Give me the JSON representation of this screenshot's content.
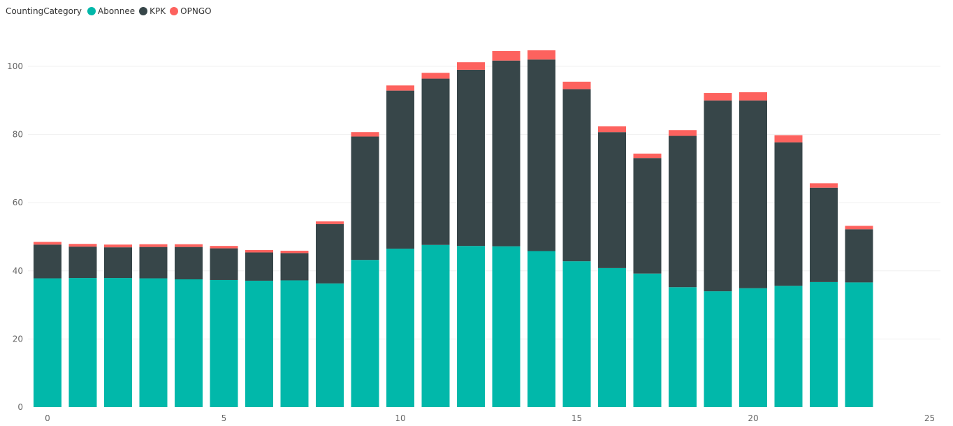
{
  "legend": {
    "title": "CountingCategory"
  },
  "colors": {
    "Abonnee": "#01B8AA",
    "KPK": "#374649",
    "OPNGO": "#FD625E",
    "grid": "#f0f0f0",
    "tick_text": "#666666"
  },
  "chart_data": {
    "type": "bar",
    "stacked": true,
    "title": "",
    "xlabel": "",
    "ylabel": "",
    "xlim": [
      -0.4,
      25
    ],
    "ylim": [
      0,
      108
    ],
    "x_ticks": [
      0,
      5,
      10,
      15,
      20,
      25
    ],
    "y_ticks": [
      0,
      20,
      40,
      60,
      80,
      100
    ],
    "grid": true,
    "legend_position": "top-left",
    "x": [
      0,
      1,
      2,
      3,
      4,
      5,
      6,
      7,
      8,
      9,
      10,
      11,
      12,
      13,
      14,
      15,
      16,
      17,
      18,
      19,
      20,
      21,
      22,
      23
    ],
    "series": [
      {
        "name": "Abonnee",
        "values": [
          37.8,
          37.9,
          37.9,
          37.8,
          37.5,
          37.3,
          37.1,
          37.2,
          36.3,
          43.2,
          46.5,
          47.6,
          47.3,
          47.2,
          45.8,
          42.8,
          40.8,
          39.2,
          35.2,
          34.0,
          34.9,
          35.6,
          36.7,
          36.6
        ]
      },
      {
        "name": "KPK",
        "values": [
          9.9,
          9.2,
          9.0,
          9.2,
          9.5,
          9.3,
          8.3,
          8.0,
          17.4,
          36.2,
          46.4,
          48.8,
          51.7,
          54.5,
          56.2,
          50.5,
          39.9,
          33.9,
          44.4,
          56.0,
          55.1,
          42.1,
          27.7,
          15.6
        ]
      },
      {
        "name": "OPNGO",
        "values": [
          0.8,
          0.8,
          0.8,
          0.8,
          0.8,
          0.7,
          0.7,
          0.7,
          0.8,
          1.3,
          1.5,
          1.7,
          2.2,
          2.8,
          2.7,
          2.2,
          1.7,
          1.3,
          1.7,
          2.2,
          2.4,
          2.1,
          1.3,
          1.0
        ]
      }
    ]
  }
}
